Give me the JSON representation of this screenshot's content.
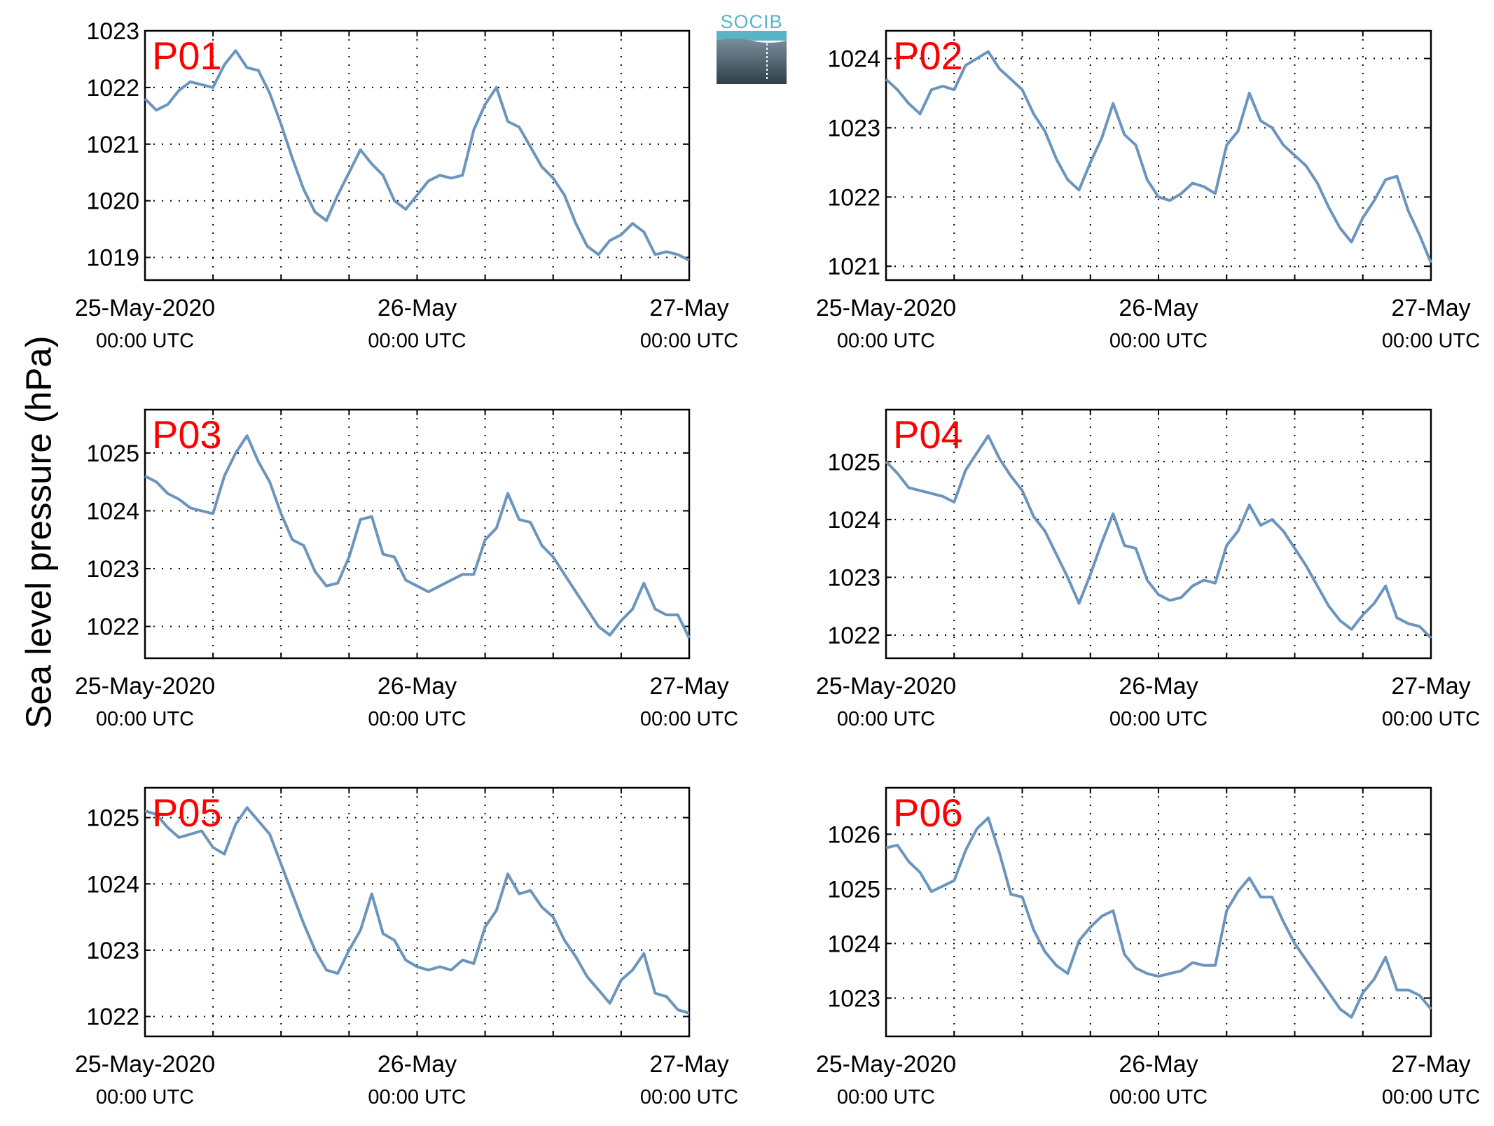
{
  "ylabel": "Sea level pressure (hPa)",
  "logo_text": "SOCIB",
  "colors": {
    "line": "#6b95bd",
    "panel_label": "#ff0000",
    "grid": "#000000"
  },
  "chart_data": [
    {
      "type": "line",
      "name": "P01",
      "xlabels": [
        "25-May-2020",
        "26-May",
        "27-May"
      ],
      "xsublabels": [
        "00:00 UTC",
        "00:00 UTC",
        "00:00 UTC"
      ],
      "xlim": [
        0,
        48
      ],
      "ylim": [
        1018.6,
        1023.0
      ],
      "yticks": [
        1019,
        1020,
        1021,
        1022,
        1023
      ],
      "grid": true,
      "x": [
        0,
        1,
        2,
        3,
        4,
        5,
        6,
        7,
        8,
        9,
        10,
        11,
        12,
        13,
        14,
        15,
        16,
        17,
        18,
        19,
        20,
        21,
        22,
        23,
        24,
        25,
        26,
        27,
        28,
        29,
        30,
        31,
        32,
        33,
        34,
        35,
        36,
        37,
        38,
        39,
        40,
        41,
        42,
        43,
        44,
        45,
        46,
        47,
        48
      ],
      "y": [
        1021.8,
        1021.6,
        1021.7,
        1021.95,
        1022.1,
        1022.05,
        1022.0,
        1022.4,
        1022.65,
        1022.35,
        1022.3,
        1021.9,
        1021.35,
        1020.75,
        1020.2,
        1019.8,
        1019.65,
        1020.1,
        1020.5,
        1020.9,
        1020.65,
        1020.45,
        1020.0,
        1019.85,
        1020.1,
        1020.35,
        1020.45,
        1020.4,
        1020.45,
        1021.25,
        1021.7,
        1022.0,
        1021.4,
        1021.3,
        1020.95,
        1020.6,
        1020.4,
        1020.1,
        1019.6,
        1019.2,
        1019.05,
        1019.3,
        1019.4,
        1019.6,
        1019.45,
        1019.05,
        1019.1,
        1019.05,
        1018.95
      ]
    },
    {
      "type": "line",
      "name": "P02",
      "xlabels": [
        "25-May-2020",
        "26-May",
        "27-May"
      ],
      "xsublabels": [
        "00:00 UTC",
        "00:00 UTC",
        "00:00 UTC"
      ],
      "xlim": [
        0,
        48
      ],
      "ylim": [
        1020.8,
        1024.4
      ],
      "yticks": [
        1021,
        1022,
        1023,
        1024
      ],
      "grid": true,
      "x": [
        0,
        1,
        2,
        3,
        4,
        5,
        6,
        7,
        8,
        9,
        10,
        11,
        12,
        13,
        14,
        15,
        16,
        17,
        18,
        19,
        20,
        21,
        22,
        23,
        24,
        25,
        26,
        27,
        28,
        29,
        30,
        31,
        32,
        33,
        34,
        35,
        36,
        37,
        38,
        39,
        40,
        41,
        42,
        43,
        44,
        45,
        46,
        47,
        48
      ],
      "y": [
        1023.7,
        1023.55,
        1023.35,
        1023.2,
        1023.55,
        1023.6,
        1023.55,
        1023.9,
        1024.0,
        1024.1,
        1023.85,
        1023.7,
        1023.55,
        1023.2,
        1022.95,
        1022.55,
        1022.25,
        1022.1,
        1022.5,
        1022.85,
        1023.35,
        1022.9,
        1022.75,
        1022.25,
        1022.0,
        1021.95,
        1022.05,
        1022.2,
        1022.15,
        1022.05,
        1022.75,
        1022.95,
        1023.5,
        1023.1,
        1023.0,
        1022.75,
        1022.6,
        1022.45,
        1022.2,
        1021.85,
        1021.55,
        1021.35,
        1021.7,
        1021.95,
        1022.25,
        1022.3,
        1021.8,
        1021.45,
        1021.05
      ]
    },
    {
      "type": "line",
      "name": "P03",
      "xlabels": [
        "25-May-2020",
        "26-May",
        "27-May"
      ],
      "xsublabels": [
        "00:00 UTC",
        "00:00 UTC",
        "00:00 UTC"
      ],
      "xlim": [
        0,
        48
      ],
      "ylim": [
        1021.45,
        1025.75
      ],
      "yticks": [
        1022,
        1023,
        1024,
        1025
      ],
      "grid": true,
      "x": [
        0,
        1,
        2,
        3,
        4,
        5,
        6,
        7,
        8,
        9,
        10,
        11,
        12,
        13,
        14,
        15,
        16,
        17,
        18,
        19,
        20,
        21,
        22,
        23,
        24,
        25,
        26,
        27,
        28,
        29,
        30,
        31,
        32,
        33,
        34,
        35,
        36,
        37,
        38,
        39,
        40,
        41,
        42,
        43,
        44,
        45,
        46,
        47,
        48
      ],
      "y": [
        1024.6,
        1024.5,
        1024.3,
        1024.2,
        1024.05,
        1024.0,
        1023.95,
        1024.6,
        1025.0,
        1025.3,
        1024.85,
        1024.5,
        1023.95,
        1023.5,
        1023.4,
        1022.95,
        1022.7,
        1022.75,
        1023.2,
        1023.85,
        1023.9,
        1023.25,
        1023.2,
        1022.8,
        1022.7,
        1022.6,
        1022.7,
        1022.8,
        1022.9,
        1022.9,
        1023.5,
        1023.7,
        1024.3,
        1023.85,
        1023.8,
        1023.4,
        1023.2,
        1022.9,
        1022.6,
        1022.3,
        1022.0,
        1021.85,
        1022.1,
        1022.3,
        1022.75,
        1022.3,
        1022.2,
        1022.2,
        1021.8
      ]
    },
    {
      "type": "line",
      "name": "P04",
      "xlabels": [
        "25-May-2020",
        "26-May",
        "27-May"
      ],
      "xsublabels": [
        "00:00 UTC",
        "00:00 UTC",
        "00:00 UTC"
      ],
      "xlim": [
        0,
        48
      ],
      "ylim": [
        1021.6,
        1025.9
      ],
      "yticks": [
        1022,
        1023,
        1024,
        1025
      ],
      "grid": true,
      "x": [
        0,
        1,
        2,
        3,
        4,
        5,
        6,
        7,
        8,
        9,
        10,
        11,
        12,
        13,
        14,
        15,
        16,
        17,
        18,
        19,
        20,
        21,
        22,
        23,
        24,
        25,
        26,
        27,
        28,
        29,
        30,
        31,
        32,
        33,
        34,
        35,
        36,
        37,
        38,
        39,
        40,
        41,
        42,
        43,
        44,
        45,
        46,
        47,
        48
      ],
      "y": [
        1025.0,
        1024.8,
        1024.55,
        1024.5,
        1024.45,
        1024.4,
        1024.3,
        1024.85,
        1025.15,
        1025.45,
        1025.05,
        1024.75,
        1024.5,
        1024.05,
        1023.8,
        1023.4,
        1023.0,
        1022.55,
        1023.05,
        1023.6,
        1024.1,
        1023.55,
        1023.5,
        1022.95,
        1022.7,
        1022.6,
        1022.65,
        1022.85,
        1022.95,
        1022.9,
        1023.55,
        1023.8,
        1024.25,
        1023.9,
        1024.0,
        1023.8,
        1023.5,
        1023.2,
        1022.85,
        1022.5,
        1022.25,
        1022.1,
        1022.35,
        1022.55,
        1022.85,
        1022.3,
        1022.2,
        1022.15,
        1021.95
      ]
    },
    {
      "type": "line",
      "name": "P05",
      "xlabels": [
        "25-May-2020",
        "26-May",
        "27-May"
      ],
      "xsublabels": [
        "00:00 UTC",
        "00:00 UTC",
        "00:00 UTC"
      ],
      "xlim": [
        0,
        48
      ],
      "ylim": [
        1021.7,
        1025.45
      ],
      "yticks": [
        1022,
        1023,
        1024,
        1025
      ],
      "grid": true,
      "x": [
        0,
        1,
        2,
        3,
        4,
        5,
        6,
        7,
        8,
        9,
        10,
        11,
        12,
        13,
        14,
        15,
        16,
        17,
        18,
        19,
        20,
        21,
        22,
        23,
        24,
        25,
        26,
        27,
        28,
        29,
        30,
        31,
        32,
        33,
        34,
        35,
        36,
        37,
        38,
        39,
        40,
        41,
        42,
        43,
        44,
        45,
        46,
        47,
        48
      ],
      "y": [
        1025.1,
        1025.05,
        1024.85,
        1024.7,
        1024.75,
        1024.8,
        1024.55,
        1024.45,
        1024.9,
        1025.15,
        1024.95,
        1024.75,
        1024.3,
        1023.85,
        1023.4,
        1023.0,
        1022.7,
        1022.65,
        1023.0,
        1023.3,
        1023.85,
        1023.25,
        1023.15,
        1022.85,
        1022.75,
        1022.7,
        1022.75,
        1022.7,
        1022.85,
        1022.8,
        1023.35,
        1023.6,
        1024.15,
        1023.85,
        1023.9,
        1023.65,
        1023.5,
        1023.15,
        1022.9,
        1022.6,
        1022.4,
        1022.2,
        1022.55,
        1022.7,
        1022.95,
        1022.35,
        1022.3,
        1022.1,
        1022.05
      ]
    },
    {
      "type": "line",
      "name": "P06",
      "xlabels": [
        "25-May-2020",
        "26-May",
        "27-May"
      ],
      "xsublabels": [
        "00:00 UTC",
        "00:00 UTC",
        "00:00 UTC"
      ],
      "xlim": [
        0,
        48
      ],
      "ylim": [
        1022.3,
        1026.85
      ],
      "yticks": [
        1023,
        1024,
        1025,
        1026
      ],
      "grid": true,
      "x": [
        0,
        1,
        2,
        3,
        4,
        5,
        6,
        7,
        8,
        9,
        10,
        11,
        12,
        13,
        14,
        15,
        16,
        17,
        18,
        19,
        20,
        21,
        22,
        23,
        24,
        25,
        26,
        27,
        28,
        29,
        30,
        31,
        32,
        33,
        34,
        35,
        36,
        37,
        38,
        39,
        40,
        41,
        42,
        43,
        44,
        45,
        46,
        47,
        48
      ],
      "y": [
        1025.75,
        1025.8,
        1025.5,
        1025.3,
        1024.95,
        1025.05,
        1025.15,
        1025.7,
        1026.1,
        1026.3,
        1025.65,
        1024.9,
        1024.85,
        1024.25,
        1023.85,
        1023.6,
        1023.45,
        1024.05,
        1024.3,
        1024.5,
        1024.6,
        1023.8,
        1023.55,
        1023.45,
        1023.4,
        1023.45,
        1023.5,
        1023.65,
        1023.6,
        1023.6,
        1024.6,
        1024.95,
        1025.2,
        1024.85,
        1024.85,
        1024.4,
        1024.0,
        1023.7,
        1023.4,
        1023.1,
        1022.8,
        1022.65,
        1023.1,
        1023.35,
        1023.75,
        1023.15,
        1023.15,
        1023.05,
        1022.8
      ]
    }
  ]
}
